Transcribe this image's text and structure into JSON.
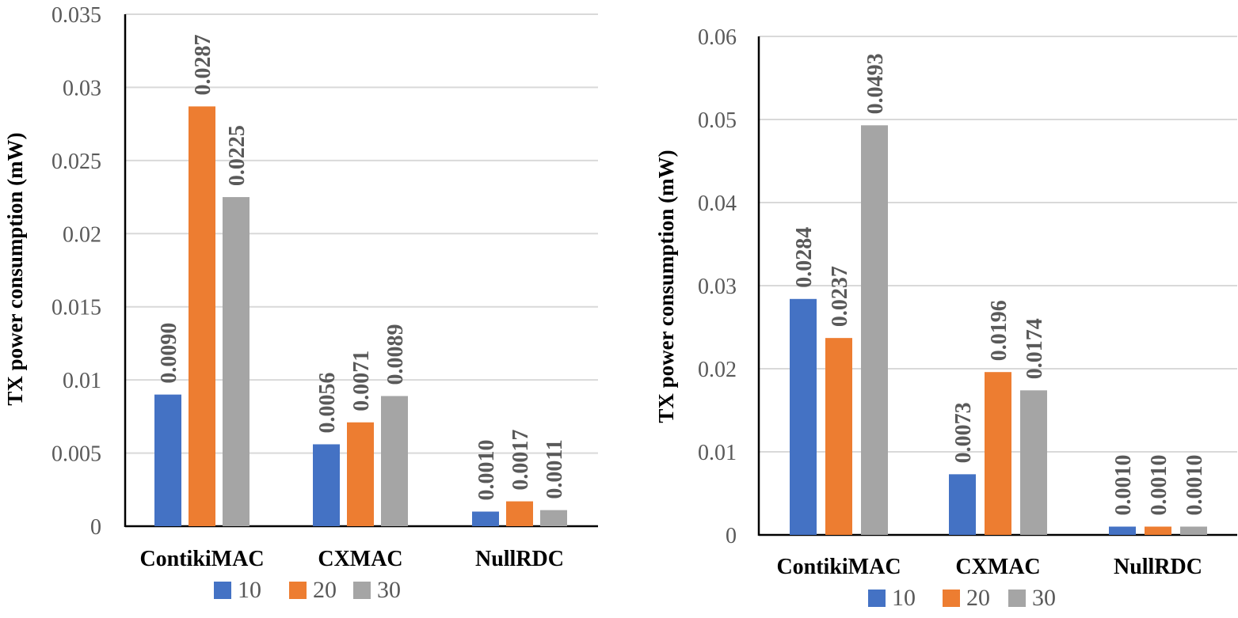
{
  "colors": {
    "s10": "#4472C4",
    "s20": "#ED7D31",
    "s30": "#A5A5A5",
    "grid": "#D9D9D9",
    "axis": "#000000"
  },
  "chart_data": [
    {
      "type": "bar",
      "ylabel": "TX power consumption (mW)",
      "categories": [
        "ContikiMAC",
        "CXMAC",
        "NullRDC"
      ],
      "ylim": [
        0,
        0.035
      ],
      "yticks": [
        "0",
        "0.005",
        "0.01",
        "0.015",
        "0.02",
        "0.025",
        "0.03",
        "0.035"
      ],
      "grid": true,
      "legend": "bottom",
      "series": [
        {
          "name": "10",
          "values": [
            0.009,
            0.0056,
            0.001
          ],
          "labels": [
            "0.0090",
            "0.0056",
            "0.0010"
          ]
        },
        {
          "name": "20",
          "values": [
            0.0287,
            0.0071,
            0.0017
          ],
          "labels": [
            "0.0287",
            "0.0071",
            "0.0017"
          ]
        },
        {
          "name": "30",
          "values": [
            0.0225,
            0.0089,
            0.0011
          ],
          "labels": [
            "0.0225",
            "0.0089",
            "0.0011"
          ]
        }
      ]
    },
    {
      "type": "bar",
      "ylabel": "TX power consumption (mW)",
      "categories": [
        "ContikiMAC",
        "CXMAC",
        "NullRDC"
      ],
      "ylim": [
        0,
        0.06
      ],
      "yticks": [
        "0",
        "0.01",
        "0.02",
        "0.03",
        "0.04",
        "0.05",
        "0.06"
      ],
      "grid": true,
      "legend": "bottom",
      "series": [
        {
          "name": "10",
          "values": [
            0.0284,
            0.0073,
            0.001
          ],
          "labels": [
            "0.0284",
            "0.0073",
            "0.0010"
          ]
        },
        {
          "name": "20",
          "values": [
            0.0237,
            0.0196,
            0.001
          ],
          "labels": [
            "0.0237",
            "0.0196",
            "0.0010"
          ]
        },
        {
          "name": "30",
          "values": [
            0.0493,
            0.0174,
            0.001
          ],
          "labels": [
            "0.0493",
            "0.0174",
            "0.0010"
          ]
        }
      ]
    }
  ]
}
